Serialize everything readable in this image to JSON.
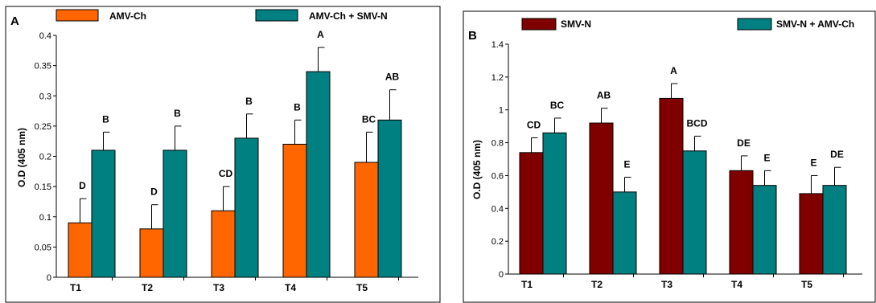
{
  "chart_data": [
    {
      "type": "bar",
      "panel_label": "A",
      "ylabel": "O.D (405 nm)",
      "xlabel": "",
      "ylim": [
        0,
        0.4
      ],
      "yticks": [
        "0",
        "0.05",
        "0.1",
        "0.15",
        "0.2",
        "0.25",
        "0.3",
        "0.35",
        "0.4"
      ],
      "categories": [
        "T1",
        "T2",
        "T3",
        "T4",
        "T5"
      ],
      "series": [
        {
          "name": "AMV-Ch",
          "color": "#ff6600",
          "values": [
            0.09,
            0.08,
            0.11,
            0.22,
            0.19
          ],
          "errors": [
            0.04,
            0.04,
            0.04,
            0.04,
            0.05
          ],
          "letters": [
            "D",
            "D",
            "CD",
            "B",
            "BC"
          ]
        },
        {
          "name": "AMV-Ch + SMV-N",
          "color": "#008080",
          "values": [
            0.21,
            0.21,
            0.23,
            0.34,
            0.26
          ],
          "errors": [
            0.03,
            0.04,
            0.04,
            0.04,
            0.05
          ],
          "letters": [
            "B",
            "B",
            "B",
            "A",
            "AB"
          ]
        }
      ]
    },
    {
      "type": "bar",
      "panel_label": "B",
      "ylabel": "O.D (405 nm)",
      "xlabel": "",
      "ylim": [
        0,
        1.4
      ],
      "yticks": [
        "0",
        "0.2",
        "0.4",
        "0.6",
        "0.8",
        "1",
        "1.2",
        "1.4"
      ],
      "categories": [
        "T1",
        "T2",
        "T3",
        "T4",
        "T5"
      ],
      "series": [
        {
          "name": "SMV-N",
          "color": "#800000",
          "values": [
            0.74,
            0.92,
            1.07,
            0.63,
            0.49
          ],
          "errors": [
            0.09,
            0.09,
            0.09,
            0.09,
            0.11
          ],
          "letters": [
            "CD",
            "AB",
            "A",
            "DE",
            "E"
          ]
        },
        {
          "name": "SMV-N + AMV-Ch",
          "color": "#008080",
          "values": [
            0.86,
            0.5,
            0.75,
            0.54,
            0.54
          ],
          "errors": [
            0.09,
            0.09,
            0.09,
            0.09,
            0.11
          ],
          "letters": [
            "BC",
            "E",
            "BCD",
            "E",
            "DE"
          ]
        }
      ]
    }
  ]
}
